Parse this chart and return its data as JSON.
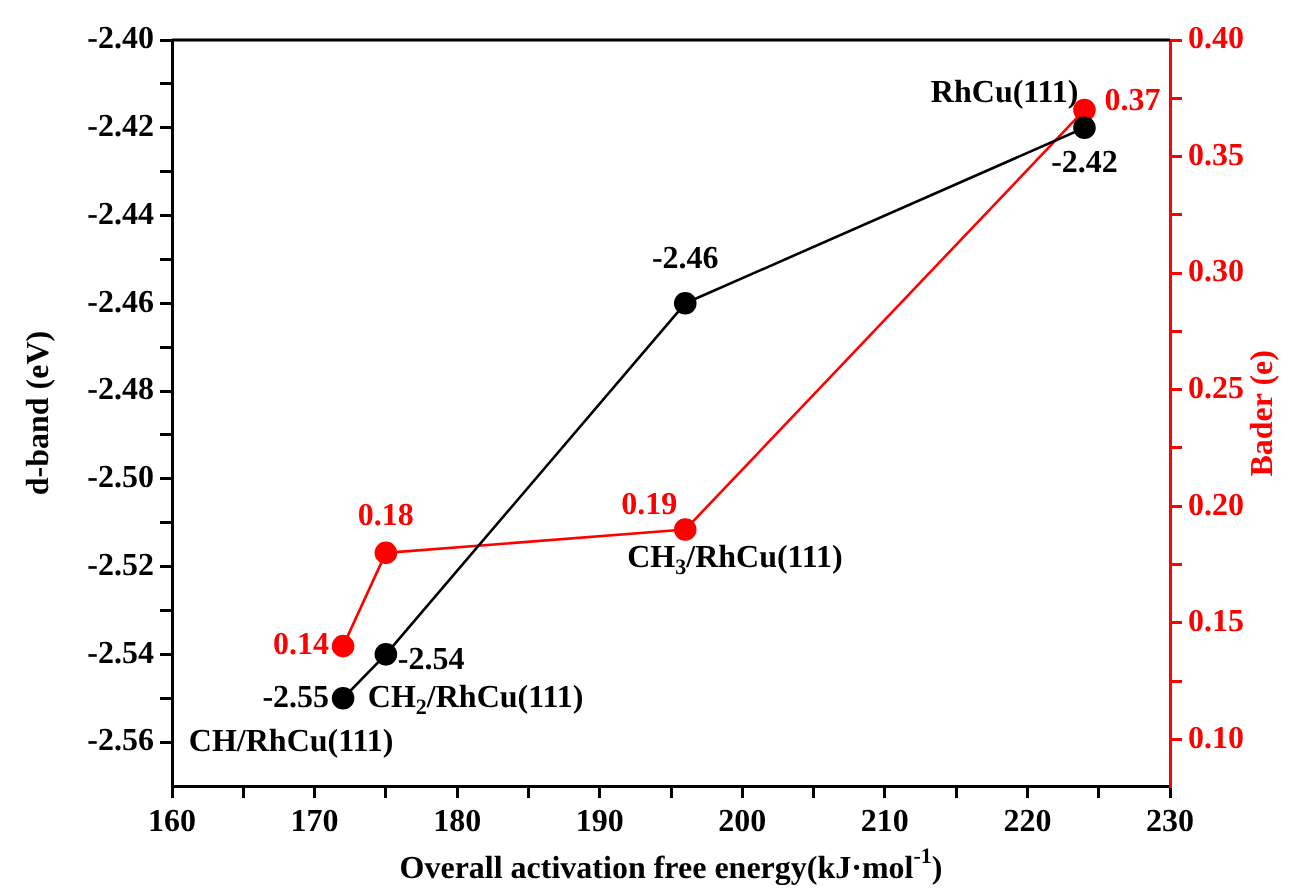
{
  "chart_data": {
    "type": "line",
    "xlabel": "Overall activation free energy(kJ·mol$^{-1}$)",
    "ylabel": "d-band (eV)",
    "y2label": "Bader (e)",
    "xlim": [
      160,
      230
    ],
    "xticks": [
      160,
      {
        "value": 165,
        "label": null
      },
      170,
      {
        "value": 175,
        "label": null
      },
      180,
      {
        "value": 185,
        "label": null
      },
      190,
      {
        "value": 195,
        "label": null
      },
      200,
      {
        "value": 205,
        "label": null
      },
      210,
      {
        "value": 215,
        "label": null
      },
      220,
      {
        "value": 225,
        "label": null
      },
      230
    ],
    "ylim": [
      -2.57,
      -2.4
    ],
    "yticks": [
      {
        "value": -2.56,
        "label": "-2.56"
      },
      {
        "value": -2.55,
        "label": null
      },
      {
        "value": -2.54,
        "label": "-2.54"
      },
      {
        "value": -2.53,
        "label": null
      },
      {
        "value": -2.52,
        "label": "-2.52"
      },
      {
        "value": -2.51,
        "label": null
      },
      {
        "value": -2.5,
        "label": "-2.50"
      },
      {
        "value": -2.49,
        "label": null
      },
      {
        "value": -2.48,
        "label": "-2.48"
      },
      {
        "value": -2.47,
        "label": null
      },
      {
        "value": -2.46,
        "label": "-2.46"
      },
      {
        "value": -2.45,
        "label": null
      },
      {
        "value": -2.44,
        "label": "-2.44"
      },
      {
        "value": -2.43,
        "label": null
      },
      {
        "value": -2.42,
        "label": "-2.42"
      },
      {
        "value": -2.41,
        "label": null
      },
      {
        "value": -2.4,
        "label": "-2.40"
      }
    ],
    "y2lim": [
      0.08,
      0.4
    ],
    "y2ticks": [
      {
        "value": 0.1,
        "label": "0.10"
      },
      {
        "value": 0.125,
        "label": null
      },
      0.15,
      {
        "value": 0.175,
        "label": null
      },
      {
        "value": 0.2,
        "label": "0.20"
      },
      {
        "value": 0.225,
        "label": null
      },
      0.25,
      {
        "value": 0.275,
        "label": null
      },
      {
        "value": 0.3,
        "label": "0.30"
      },
      {
        "value": 0.325,
        "label": null
      },
      0.35,
      {
        "value": 0.375,
        "label": null
      },
      {
        "value": 0.4,
        "label": "0.40"
      }
    ],
    "x": [
      172,
      175,
      196,
      224
    ],
    "series": [
      {
        "color": "#000000",
        "values": [
          -2.55,
          -2.54,
          -2.46,
          -2.42
        ]
      },
      {
        "color": "#ff0000",
        "axis": "y2",
        "values": [
          0.14,
          0.18,
          0.19,
          0.37
        ]
      }
    ],
    "data_labels": true,
    "marker": "circle",
    "grid": false,
    "legend": false,
    "annotations": [
      {
        "text": "RhCu(111)",
        "x": 224,
        "y": -2.42
      },
      {
        "text": "CH$_{3}$/RhCu(111)",
        "x": 196,
        "y": -2.51
      },
      {
        "text": "CH$_{2}$/RhCu(111)",
        "x": 175,
        "y": -2.54
      },
      {
        "text": "CH/RhCu(111)",
        "x": 172,
        "y": -2.55
      }
    ]
  }
}
